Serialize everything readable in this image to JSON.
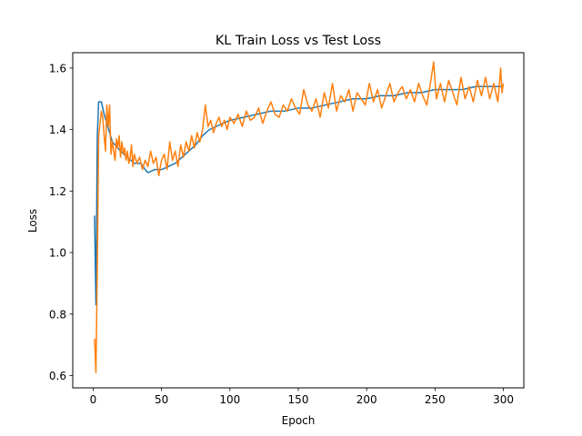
{
  "chart_data": {
    "type": "line",
    "title": "KL Train Loss vs Test Loss",
    "xlabel": "Epoch",
    "ylabel": "Loss",
    "xlim": [
      -14.95,
      314.95
    ],
    "ylim": [
      0.56,
      1.65
    ],
    "xticks": [
      0,
      50,
      100,
      150,
      200,
      250,
      300
    ],
    "yticks": [
      0.6,
      0.8,
      1.0,
      1.2,
      1.4,
      1.6
    ],
    "ytick_labels": [
      "0.6",
      "0.8",
      "1.0",
      "1.2",
      "1.4",
      "1.6"
    ],
    "grid": false,
    "legend": "none",
    "series": [
      {
        "color": "#1f77b4",
        "x": [
          1,
          2,
          3,
          4,
          5,
          6,
          7,
          8,
          10,
          12,
          14,
          16,
          18,
          20,
          25,
          30,
          35,
          38,
          40,
          45,
          50,
          55,
          60,
          65,
          70,
          75,
          80,
          85,
          90,
          95,
          100,
          110,
          120,
          130,
          140,
          150,
          160,
          170,
          180,
          190,
          200,
          210,
          220,
          230,
          240,
          250,
          260,
          270,
          280,
          290,
          295,
          300
        ],
        "values": [
          1.12,
          0.83,
          1.38,
          1.49,
          1.49,
          1.49,
          1.47,
          1.45,
          1.42,
          1.39,
          1.36,
          1.35,
          1.34,
          1.33,
          1.31,
          1.29,
          1.29,
          1.27,
          1.26,
          1.27,
          1.27,
          1.28,
          1.29,
          1.31,
          1.33,
          1.35,
          1.38,
          1.4,
          1.41,
          1.42,
          1.43,
          1.44,
          1.45,
          1.46,
          1.46,
          1.47,
          1.47,
          1.48,
          1.49,
          1.5,
          1.5,
          1.51,
          1.51,
          1.52,
          1.52,
          1.53,
          1.53,
          1.53,
          1.54,
          1.54,
          1.54,
          1.54
        ]
      },
      {
        "color": "#ff7f0e",
        "x": [
          1,
          2,
          3,
          4,
          5,
          6,
          7,
          8,
          9,
          10,
          11,
          12,
          13,
          14,
          15,
          16,
          17,
          18,
          19,
          20,
          21,
          22,
          23,
          24,
          25,
          26,
          27,
          28,
          29,
          30,
          32,
          34,
          36,
          38,
          40,
          42,
          44,
          46,
          48,
          50,
          52,
          54,
          56,
          58,
          60,
          62,
          64,
          66,
          68,
          70,
          72,
          74,
          76,
          78,
          80,
          82,
          84,
          86,
          88,
          90,
          92,
          94,
          96,
          98,
          100,
          103,
          106,
          109,
          112,
          115,
          118,
          121,
          124,
          127,
          130,
          133,
          136,
          139,
          142,
          145,
          148,
          151,
          154,
          157,
          160,
          163,
          166,
          169,
          172,
          175,
          178,
          181,
          184,
          187,
          190,
          193,
          196,
          199,
          202,
          205,
          208,
          211,
          214,
          217,
          220,
          223,
          226,
          229,
          232,
          235,
          238,
          241,
          244,
          247,
          249,
          251,
          254,
          257,
          260,
          263,
          266,
          269,
          272,
          275,
          278,
          281,
          284,
          287,
          290,
          293,
          296,
          298,
          299,
          300
        ],
        "values": [
          0.72,
          0.61,
          0.95,
          1.38,
          1.42,
          1.46,
          1.44,
          1.38,
          1.33,
          1.48,
          1.41,
          1.48,
          1.32,
          1.36,
          1.33,
          1.3,
          1.37,
          1.34,
          1.38,
          1.31,
          1.36,
          1.32,
          1.34,
          1.3,
          1.33,
          1.29,
          1.31,
          1.35,
          1.28,
          1.32,
          1.29,
          1.31,
          1.27,
          1.3,
          1.28,
          1.33,
          1.29,
          1.31,
          1.25,
          1.3,
          1.32,
          1.27,
          1.36,
          1.3,
          1.33,
          1.28,
          1.35,
          1.31,
          1.36,
          1.33,
          1.38,
          1.34,
          1.39,
          1.36,
          1.4,
          1.48,
          1.41,
          1.43,
          1.39,
          1.42,
          1.44,
          1.41,
          1.43,
          1.4,
          1.44,
          1.42,
          1.45,
          1.41,
          1.46,
          1.43,
          1.44,
          1.47,
          1.42,
          1.46,
          1.49,
          1.45,
          1.44,
          1.48,
          1.46,
          1.5,
          1.47,
          1.45,
          1.53,
          1.48,
          1.46,
          1.5,
          1.44,
          1.52,
          1.47,
          1.55,
          1.46,
          1.51,
          1.49,
          1.53,
          1.46,
          1.52,
          1.5,
          1.48,
          1.55,
          1.49,
          1.53,
          1.47,
          1.51,
          1.55,
          1.49,
          1.52,
          1.54,
          1.5,
          1.53,
          1.49,
          1.55,
          1.51,
          1.48,
          1.56,
          1.62,
          1.5,
          1.55,
          1.49,
          1.56,
          1.52,
          1.48,
          1.57,
          1.5,
          1.54,
          1.49,
          1.56,
          1.51,
          1.57,
          1.5,
          1.55,
          1.49,
          1.6,
          1.52,
          1.55
        ]
      }
    ]
  }
}
